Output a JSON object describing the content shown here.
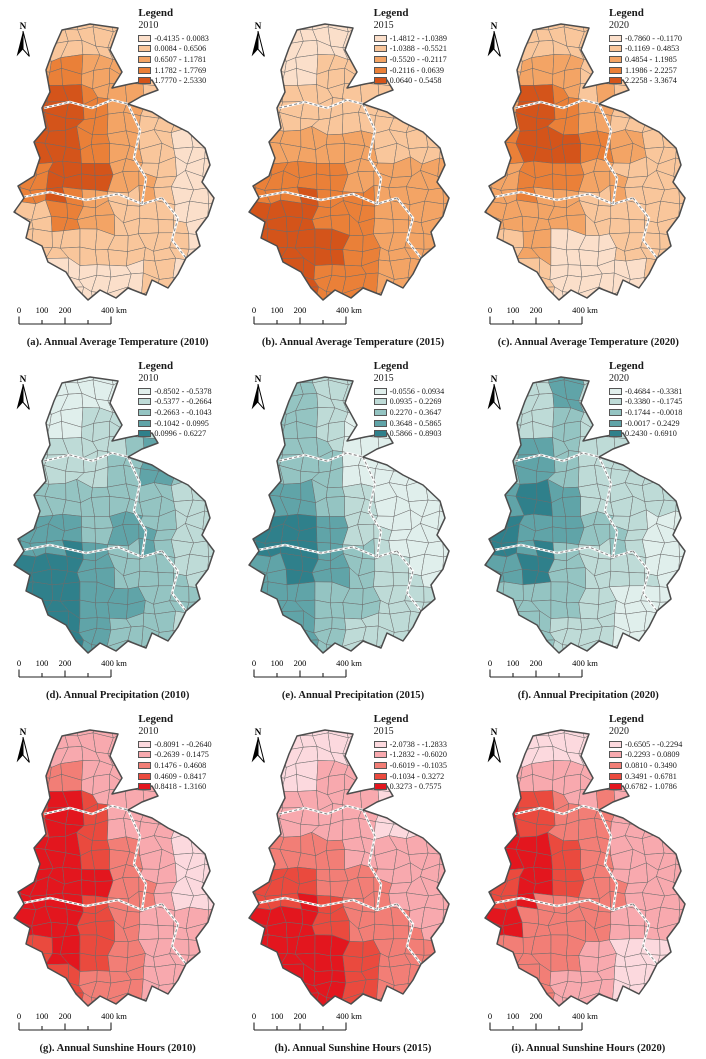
{
  "figure": {
    "north_label": "N",
    "legend_title": "Legend",
    "scalebar": {
      "labels": [
        "0",
        "100",
        "200",
        "400 km"
      ]
    }
  },
  "palettes": {
    "temperature": [
      "#fbdfca",
      "#f9c69b",
      "#f3a465",
      "#ea8038",
      "#d4541a"
    ],
    "precipitation": [
      "#e0efec",
      "#bedbd7",
      "#94c4c2",
      "#60a4a8",
      "#2f808b"
    ],
    "sunshine": [
      "#fcd9de",
      "#f8a9ae",
      "#f27e76",
      "#ea4a3e",
      "#e3161e"
    ]
  },
  "panels": [
    {
      "id": "a",
      "year": "2010",
      "palette": "temperature",
      "caption": "(a). Annual Average Temperature (2010)",
      "classes": [
        "-0.4135 - 0.0083",
        "0.0084 - 0.6506",
        "0.6507 - 1.1781",
        "1.1782 - 1.7769",
        "1.7770 - 2.5330"
      ],
      "class_grid": [
        [
          2,
          2,
          2,
          2,
          2,
          2
        ],
        [
          3,
          4,
          3,
          3,
          2,
          2
        ],
        [
          5,
          5,
          4,
          3,
          2,
          2
        ],
        [
          5,
          5,
          4,
          3,
          2,
          1
        ],
        [
          4,
          5,
          5,
          3,
          2,
          1
        ],
        [
          2,
          4,
          3,
          2,
          2,
          1
        ],
        [
          2,
          2,
          2,
          2,
          2,
          1
        ],
        [
          1,
          1,
          1,
          1,
          2,
          1
        ]
      ]
    },
    {
      "id": "b",
      "year": "2015",
      "palette": "temperature",
      "caption": "(b). Annual Average Temperature (2015)",
      "classes": [
        "-1.4812 - -1.0389",
        "-1.0388 - -0.5521",
        "-0.5520 - -0.2117",
        "-0.2116 - 0.0639",
        "0.0640 - 0.5458"
      ],
      "class_grid": [
        [
          1,
          1,
          1,
          1,
          1,
          1
        ],
        [
          1,
          1,
          2,
          2,
          2,
          2
        ],
        [
          2,
          2,
          2,
          2,
          2,
          2
        ],
        [
          3,
          3,
          3,
          3,
          2,
          2
        ],
        [
          4,
          4,
          4,
          3,
          3,
          3
        ],
        [
          5,
          5,
          4,
          4,
          3,
          3
        ],
        [
          5,
          5,
          5,
          4,
          3,
          3
        ],
        [
          4,
          5,
          4,
          4,
          3,
          3
        ]
      ]
    },
    {
      "id": "c",
      "year": "2020",
      "palette": "temperature",
      "caption": "(c). Annual Average Temperature (2020)",
      "classes": [
        "-0.7860 - -0.1170",
        "-0.1169 - 0.4853",
        "0.4854 - 1.1985",
        "1.1986 - 2.2257",
        "2.2258 - 3.3674"
      ],
      "class_grid": [
        [
          2,
          2,
          2,
          2,
          2,
          2
        ],
        [
          2,
          3,
          3,
          2,
          2,
          2
        ],
        [
          3,
          5,
          4,
          3,
          2,
          2
        ],
        [
          4,
          5,
          5,
          4,
          3,
          2
        ],
        [
          3,
          4,
          4,
          3,
          2,
          2
        ],
        [
          3,
          3,
          3,
          2,
          2,
          2
        ],
        [
          2,
          3,
          1,
          1,
          2,
          2
        ],
        [
          1,
          2,
          1,
          1,
          1,
          2
        ]
      ]
    },
    {
      "id": "d",
      "year": "2010",
      "palette": "precipitation",
      "caption": "(d). Annual Precipitation (2010)",
      "classes": [
        "-0.8502 - -0.5378",
        "-0.5377 - -0.2664",
        "-0.2663 - -0.1043",
        "-0.1042 - 0.0995",
        "0.0996 - 0.6227"
      ],
      "class_grid": [
        [
          1,
          1,
          1,
          1,
          1,
          1
        ],
        [
          1,
          1,
          2,
          2,
          2,
          2
        ],
        [
          2,
          2,
          2,
          3,
          4,
          3
        ],
        [
          3,
          3,
          3,
          3,
          3,
          2
        ],
        [
          4,
          4,
          3,
          4,
          3,
          2
        ],
        [
          5,
          5,
          4,
          3,
          3,
          2
        ],
        [
          5,
          5,
          4,
          4,
          3,
          3
        ],
        [
          4,
          5,
          4,
          3,
          3,
          2
        ]
      ]
    },
    {
      "id": "e",
      "year": "2015",
      "palette": "precipitation",
      "caption": "(e). Annual Precipitation (2015)",
      "classes": [
        "-0.0556 - 0.0934",
        "0.0935 - 0.2269",
        "0.2270 - 0.3647",
        "0.3648 - 0.5865",
        "0.5866 - 0.8903"
      ],
      "class_grid": [
        [
          3,
          3,
          2,
          2,
          2,
          2
        ],
        [
          3,
          3,
          2,
          1,
          1,
          1
        ],
        [
          3,
          3,
          3,
          1,
          1,
          1
        ],
        [
          4,
          4,
          3,
          2,
          1,
          1
        ],
        [
          5,
          5,
          4,
          2,
          1,
          1
        ],
        [
          4,
          5,
          4,
          3,
          2,
          1
        ],
        [
          4,
          4,
          3,
          3,
          2,
          2
        ],
        [
          3,
          4,
          3,
          2,
          2,
          2
        ]
      ]
    },
    {
      "id": "f",
      "year": "2020",
      "palette": "precipitation",
      "caption": "(f). Annual Precipitation (2020)",
      "classes": [
        "-0.4684 - -0.3381",
        "-0.3380 - -0.1745",
        "-0.1744 - -0.0018",
        "-0.0017 - 0.2429",
        "0.2430 - 0.6910"
      ],
      "class_grid": [
        [
          2,
          2,
          4,
          2,
          2,
          2
        ],
        [
          2,
          2,
          3,
          2,
          2,
          2
        ],
        [
          3,
          4,
          3,
          2,
          2,
          2
        ],
        [
          4,
          5,
          4,
          2,
          2,
          2
        ],
        [
          5,
          4,
          4,
          3,
          2,
          1
        ],
        [
          4,
          5,
          3,
          2,
          2,
          1
        ],
        [
          3,
          3,
          3,
          2,
          1,
          1
        ],
        [
          2,
          3,
          2,
          2,
          1,
          1
        ]
      ]
    },
    {
      "id": "g",
      "year": "2010",
      "palette": "sunshine",
      "caption": "(g). Annual Sunshine Hours (2010)",
      "classes": [
        "-0.8091 - -0.2640",
        "-0.2639 - 0.1475",
        "0.1476 - 0.4608",
        "0.4609 - 0.8417",
        "0.8418 - 1.3160"
      ],
      "class_grid": [
        [
          2,
          2,
          2,
          2,
          2,
          2
        ],
        [
          3,
          3,
          2,
          2,
          2,
          2
        ],
        [
          4,
          5,
          4,
          2,
          2,
          1
        ],
        [
          5,
          5,
          4,
          3,
          2,
          1
        ],
        [
          5,
          5,
          5,
          3,
          2,
          1
        ],
        [
          5,
          5,
          4,
          3,
          2,
          2
        ],
        [
          4,
          5,
          4,
          3,
          2,
          2
        ],
        [
          3,
          4,
          3,
          3,
          2,
          2
        ]
      ]
    },
    {
      "id": "h",
      "year": "2015",
      "palette": "sunshine",
      "caption": "(h). Annual Sunshine Hours (2015)",
      "classes": [
        "-2.0738 - -1.2833",
        "-1.2832 - -0.6020",
        "-0.6019 - -0.1035",
        "-0.1034 - 0.3272",
        "0.3273 - 0.7575"
      ],
      "class_grid": [
        [
          1,
          1,
          1,
          1,
          1,
          1
        ],
        [
          1,
          1,
          2,
          2,
          1,
          1
        ],
        [
          2,
          2,
          2,
          2,
          1,
          1
        ],
        [
          3,
          3,
          3,
          2,
          2,
          2
        ],
        [
          4,
          4,
          3,
          3,
          2,
          2
        ],
        [
          5,
          5,
          4,
          3,
          3,
          2
        ],
        [
          5,
          5,
          5,
          4,
          3,
          3
        ],
        [
          4,
          5,
          5,
          4,
          3,
          3
        ]
      ]
    },
    {
      "id": "i",
      "year": "2020",
      "palette": "sunshine",
      "caption": "(i). Annual Sunshine Hours (2020)",
      "classes": [
        "-0.6505 - -0.2294",
        "-0.2293 - 0.0809",
        "0.0810 - 0.3490",
        "0.3491 - 0.6781",
        "0.6782 - 1.0786"
      ],
      "class_grid": [
        [
          1,
          1,
          1,
          1,
          1,
          1
        ],
        [
          2,
          2,
          2,
          2,
          2,
          2
        ],
        [
          5,
          4,
          3,
          3,
          2,
          2
        ],
        [
          5,
          5,
          4,
          3,
          2,
          2
        ],
        [
          4,
          5,
          4,
          3,
          2,
          2
        ],
        [
          5,
          3,
          3,
          3,
          2,
          2
        ],
        [
          3,
          3,
          3,
          2,
          1,
          1
        ],
        [
          2,
          3,
          2,
          2,
          1,
          1
        ]
      ]
    }
  ]
}
